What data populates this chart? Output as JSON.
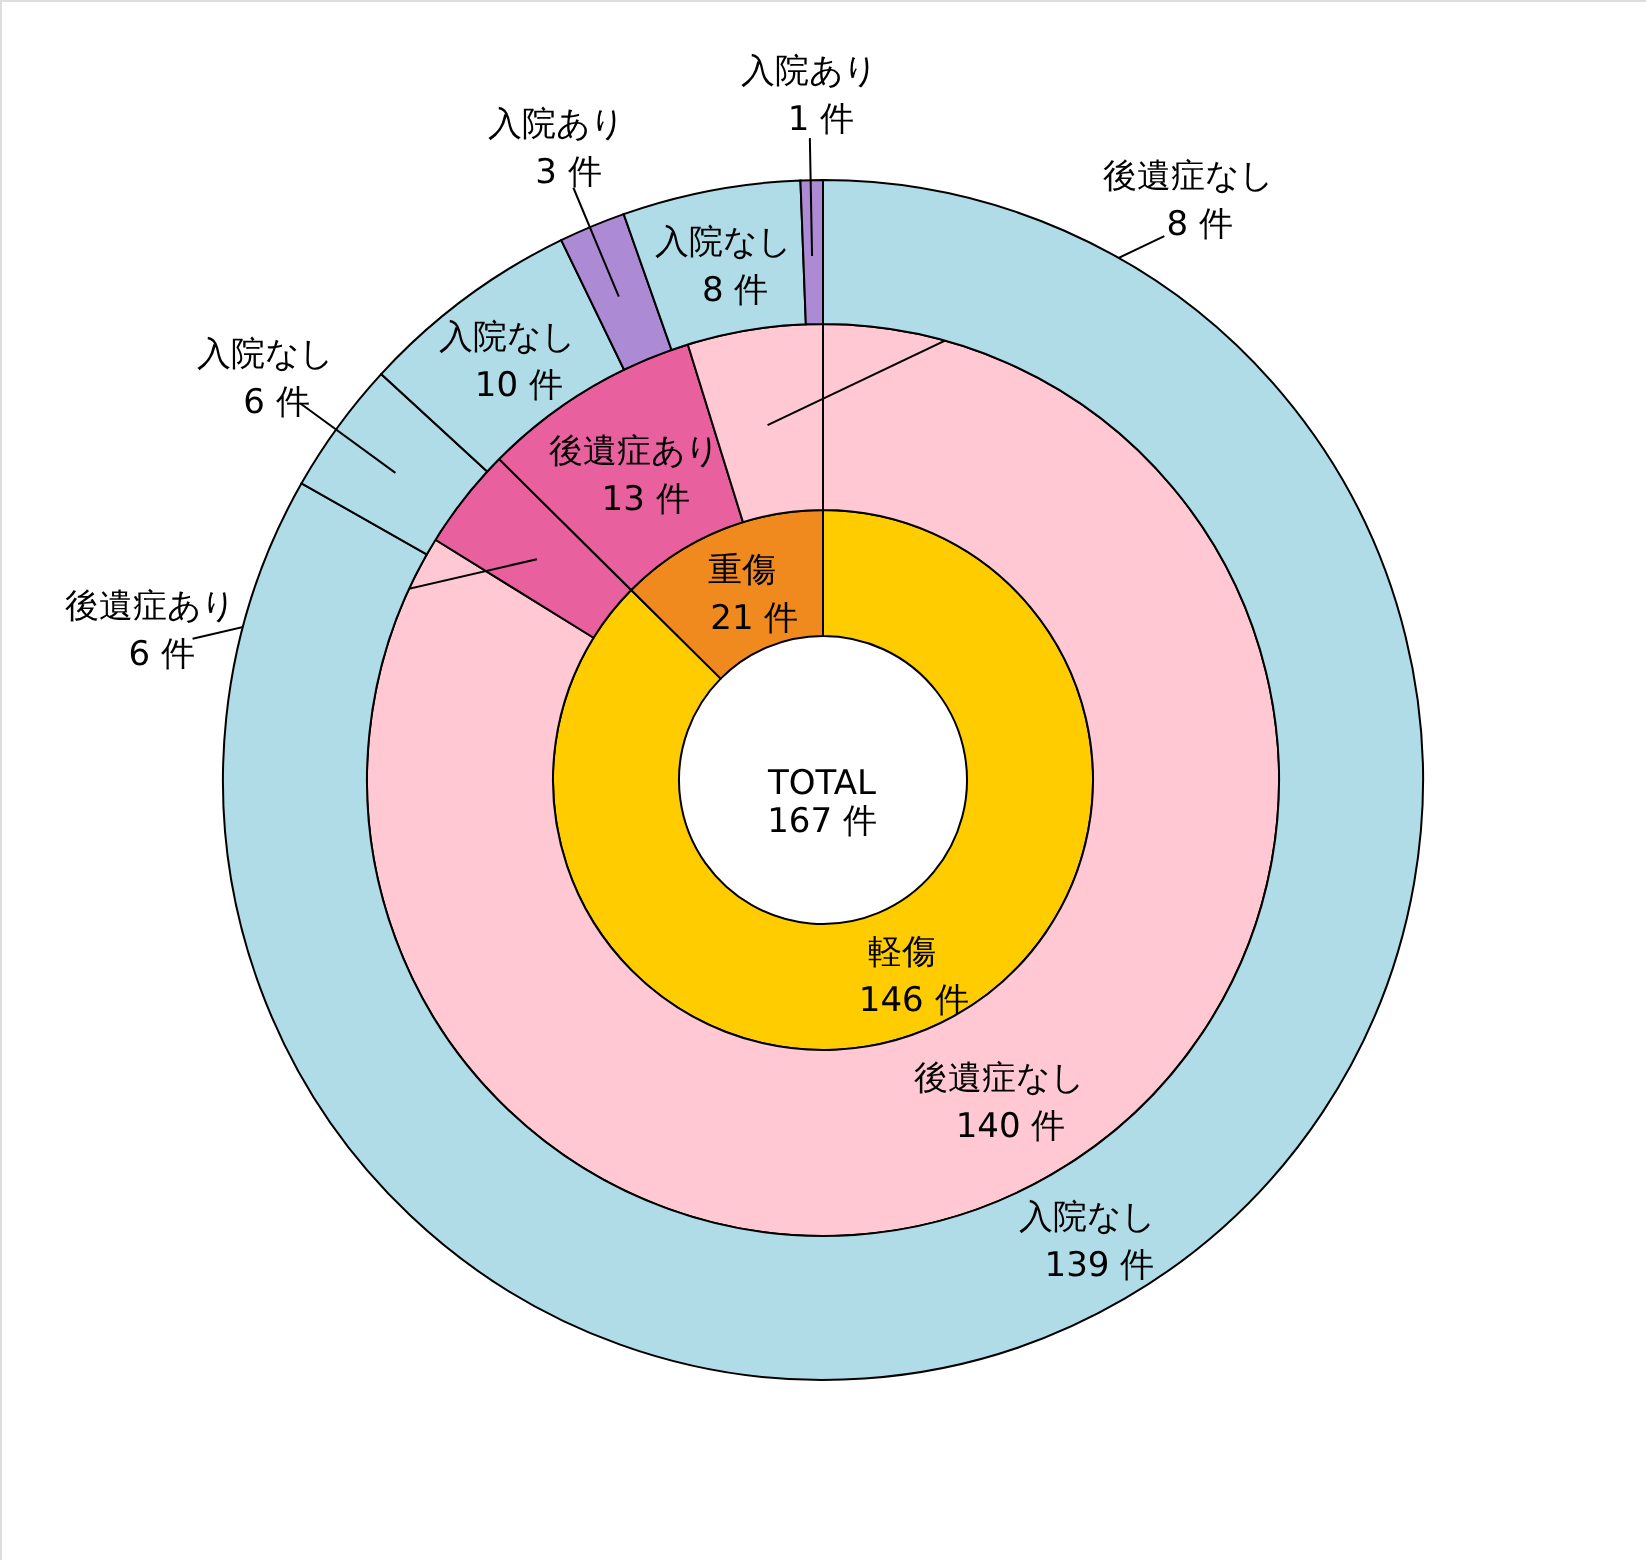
{
  "chart_data": [
    {
      "type": "donut",
      "categories": [
        "軽傷",
        "重傷"
      ],
      "values": [
        146,
        21
      ],
      "colors": [
        "#ffcc00",
        "#f08a1e"
      ],
      "value_labels": [
        "146 件",
        "21 件"
      ],
      "annotations": [
        "TOTAL\n167 件"
      ]
    },
    {
      "type": "donut",
      "categories": [
        "後遺症なし",
        "後遺症あり",
        "後遺症あり",
        "後遺症なし"
      ],
      "values": [
        140,
        6,
        13,
        8
      ],
      "colors": [
        "#ffc8d2",
        "#e8609e",
        "#e8609e",
        "#ffc8d2"
      ],
      "value_labels": [
        "140 件",
        "6 件",
        "13 件",
        "8 件"
      ]
    },
    {
      "type": "donut",
      "categories": [
        "入院なし",
        "入院なし",
        "入院なし",
        "入院あり",
        "入院なし",
        "入院あり"
      ],
      "values": [
        139,
        6,
        10,
        3,
        8,
        1
      ],
      "colors": [
        "#b0dce8",
        "#b0dce8",
        "#b0dce8",
        "#ad8ad4",
        "#b0dce8",
        "#ad8ad4"
      ],
      "value_labels": [
        "139 件",
        "6 件",
        "10 件",
        "3 件",
        "8 件",
        "1 件"
      ]
    }
  ]
}
